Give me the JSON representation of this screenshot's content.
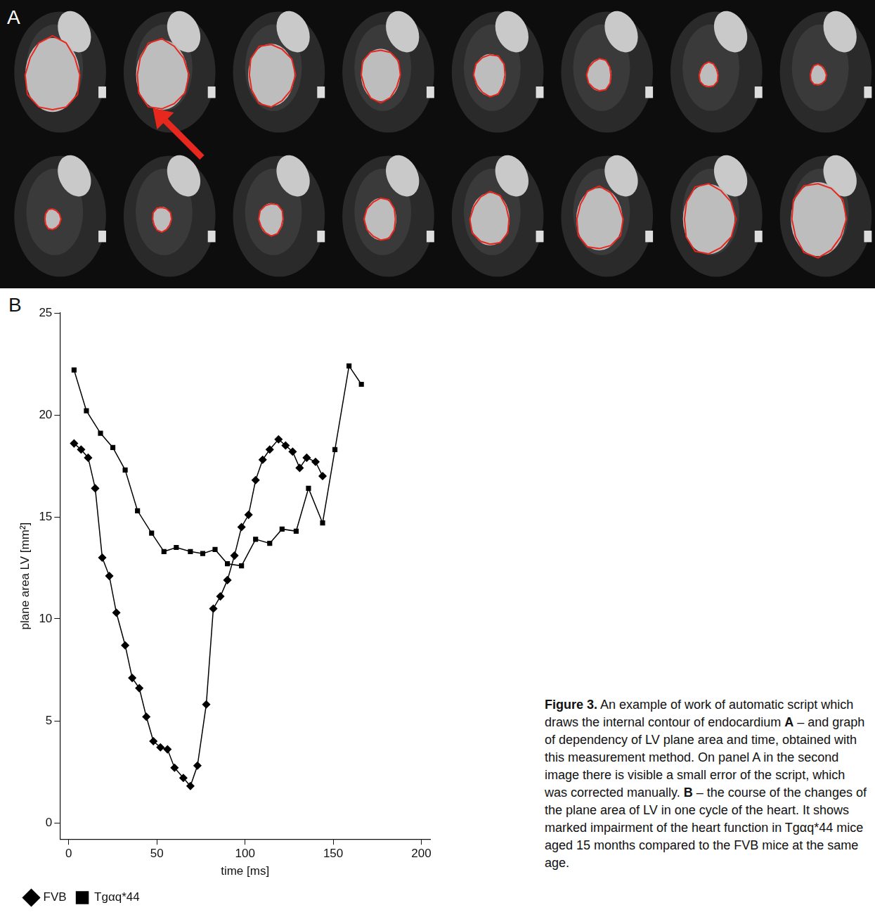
{
  "panel_labels": [
    "A",
    "B"
  ],
  "caption": [
    {
      "text": "Figure 3.",
      "bold": true
    },
    {
      "text": " An example of work of automatic script which draws the internal contour of endocardium ",
      "bold": false
    },
    {
      "text": "A",
      "bold": true
    },
    {
      "text": " – and graph of dependency of LV plane area and time, obtained with this measurement method. On panel A in the second image there is visible a small error of the script, which was corrected manually. ",
      "bold": false
    },
    {
      "text": "B",
      "bold": true
    },
    {
      "text": " – the course of the changes of the plane area of LV in one cycle of the heart. It shows marked impairment of the heart function in Tgαq*44 mice aged 15 months compared to the FVB mice at the same age.",
      "bold": false
    }
  ],
  "chart_data": {
    "type": "line",
    "x_label": "time [ms]",
    "y_label": "plane area LV [mm²]",
    "xlim": [
      -5,
      205
    ],
    "xticks": [
      0,
      50,
      100,
      150,
      200
    ],
    "ylim": [
      -0.8,
      25
    ],
    "yticks": [
      0,
      5,
      10,
      15,
      20,
      25
    ],
    "grid": false,
    "legend": "bottom",
    "series": [
      {
        "name": "FVB",
        "color": "#000000",
        "marker": "diamond",
        "line_style": "solid",
        "x": [
          3,
          7,
          11,
          15,
          19,
          23,
          27,
          32,
          36,
          40,
          44,
          48,
          52,
          56,
          60,
          65,
          69,
          73,
          78,
          82,
          86,
          90,
          94,
          98,
          102,
          106,
          110,
          114,
          119,
          123,
          127,
          131,
          135,
          140,
          144
        ],
        "values": [
          18.6,
          18.3,
          17.9,
          16.4,
          13.0,
          12.1,
          10.3,
          8.7,
          7.1,
          6.6,
          5.2,
          4.0,
          3.7,
          3.6,
          2.7,
          2.2,
          1.8,
          2.8,
          5.8,
          10.5,
          11.1,
          11.9,
          13.1,
          14.5,
          15.1,
          16.8,
          17.8,
          18.3,
          18.8,
          18.5,
          18.2,
          17.4,
          17.9,
          17.7,
          17.0
        ]
      },
      {
        "name": "Tgαq*44",
        "color": "#000000",
        "marker": "square",
        "line_style": "solid",
        "x": [
          3,
          10,
          18,
          25,
          32,
          39,
          47,
          54,
          61,
          69,
          76,
          83,
          90,
          98,
          106,
          114,
          121,
          129,
          136,
          144,
          151,
          159,
          166
        ],
        "values": [
          22.2,
          20.2,
          19.1,
          18.4,
          17.3,
          15.3,
          14.2,
          13.3,
          13.5,
          13.3,
          13.2,
          13.4,
          12.7,
          12.6,
          13.9,
          13.7,
          14.4,
          14.3,
          16.4,
          14.7,
          18.3,
          22.4,
          21.5
        ]
      }
    ]
  }
}
